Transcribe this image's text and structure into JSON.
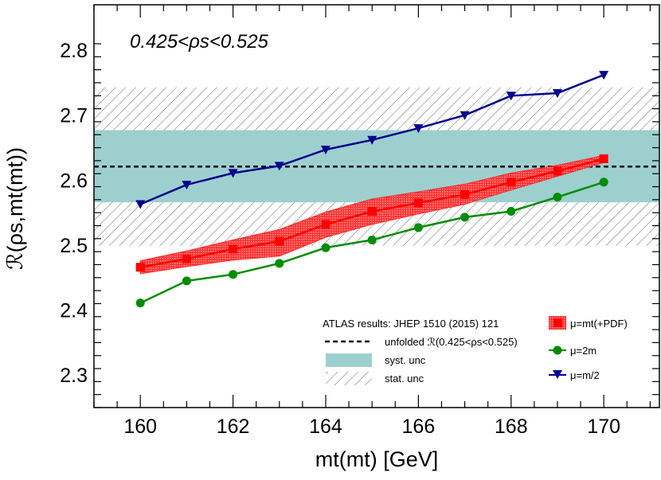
{
  "chart_data": {
    "type": "line",
    "annotation": "0.425<ρs<0.525",
    "xlabel": "mt(mt) [GeV]",
    "ylabel": "ℛ(ρs,mt(mt))",
    "xlim": [
      159,
      171.2
    ],
    "ylim": [
      2.25,
      2.87
    ],
    "x_ticks": [
      160,
      162,
      164,
      166,
      168,
      170
    ],
    "x_tick_labels": [
      "160",
      "162",
      "164",
      "166",
      "168",
      "170"
    ],
    "y_ticks": [
      2.3,
      2.4,
      2.5,
      2.6,
      2.7,
      2.8
    ],
    "y_tick_labels": [
      "2.3",
      "2.4",
      "2.5",
      "2.6",
      "2.7",
      "2.8"
    ],
    "x": [
      160,
      161,
      162,
      163,
      164,
      165,
      166,
      167,
      168,
      169,
      170
    ],
    "series": [
      {
        "name": "μ=mt(+PDF)",
        "color": "#ff0000",
        "values": [
          2.466,
          2.479,
          2.494,
          2.506,
          2.532,
          2.552,
          2.565,
          2.578,
          2.597,
          2.614,
          2.633
        ],
        "band_low": [
          2.456,
          2.467,
          2.477,
          2.483,
          2.512,
          2.532,
          2.548,
          2.563,
          2.585,
          2.606,
          2.627
        ],
        "band_high": [
          2.476,
          2.491,
          2.508,
          2.524,
          2.551,
          2.571,
          2.582,
          2.594,
          2.611,
          2.623,
          2.638
        ]
      },
      {
        "name": "μ=2m",
        "color": "#008c00",
        "values": [
          2.411,
          2.445,
          2.455,
          2.472,
          2.496,
          2.508,
          2.527,
          2.543,
          2.552,
          2.574,
          2.597
        ]
      },
      {
        "name": "μ=m/2",
        "color": "#00008c",
        "values": [
          2.563,
          2.593,
          2.611,
          2.622,
          2.647,
          2.662,
          2.68,
          2.7,
          2.73,
          2.734,
          2.762
        ]
      }
    ],
    "reference": {
      "label": "ATLAS results: JHEP 1510 (2015) 121",
      "unfolded_label": "unfolded ℛ(0.425<ρs<0.525)",
      "value": 2.621,
      "syst_label": "syst. unc",
      "syst_range": [
        2.566,
        2.677
      ],
      "stat_label": "stat. unc",
      "stat_range": [
        2.499,
        2.743
      ],
      "syst_color": "#9dcfcf"
    }
  }
}
